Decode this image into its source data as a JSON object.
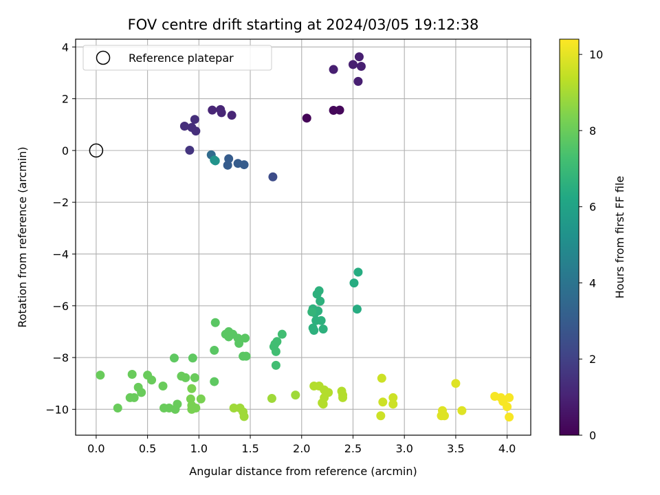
{
  "chart_data": {
    "type": "scatter",
    "title": "FOV centre drift starting at 2024/03/05 19:12:38",
    "xlabel": "Angular distance from reference (arcmin)",
    "ylabel": "Rotation from reference (arcmin)",
    "colorbar_label": "Hours from first FF file",
    "xlim": [
      -0.2,
      4.23
    ],
    "ylim": [
      -11.0,
      4.3
    ],
    "clim": [
      0,
      10.4
    ],
    "colormap": "viridis",
    "x_ticks": [
      0.0,
      0.5,
      1.0,
      1.5,
      2.0,
      2.5,
      3.0,
      3.5,
      4.0
    ],
    "x_tick_labels": [
      "0.0",
      "0.5",
      "1.0",
      "1.5",
      "2.0",
      "2.5",
      "3.0",
      "3.5",
      "4.0"
    ],
    "y_ticks": [
      4,
      2,
      0,
      -2,
      -4,
      -6,
      -8,
      -10
    ],
    "y_tick_labels": [
      "4",
      "2",
      "0",
      "−2",
      "−4",
      "−6",
      "−8",
      "−10"
    ],
    "colorbar_ticks": [
      0,
      2,
      4,
      6,
      8,
      10
    ],
    "colorbar_tick_labels": [
      "0",
      "2",
      "4",
      "6",
      "8",
      "10"
    ],
    "grid": true,
    "legend": {
      "position": "top-left",
      "entries": [
        "Reference platepar"
      ]
    },
    "reference": {
      "name": "Reference platepar",
      "x": 0.0,
      "y": 0.0,
      "marker": "open-circle"
    },
    "points": [
      {
        "x": 2.05,
        "y": 1.25,
        "t": 0.1
      },
      {
        "x": 2.31,
        "y": 1.55,
        "t": 0.2
      },
      {
        "x": 2.37,
        "y": 1.56,
        "t": 0.2
      },
      {
        "x": 2.31,
        "y": 3.13,
        "t": 0.9
      },
      {
        "x": 2.5,
        "y": 3.32,
        "t": 0.9
      },
      {
        "x": 2.56,
        "y": 3.62,
        "t": 0.9
      },
      {
        "x": 2.58,
        "y": 3.25,
        "t": 0.9
      },
      {
        "x": 2.55,
        "y": 2.67,
        "t": 0.9
      },
      {
        "x": 1.13,
        "y": 1.56,
        "t": 1.1
      },
      {
        "x": 1.21,
        "y": 1.58,
        "t": 1.1
      },
      {
        "x": 1.22,
        "y": 1.46,
        "t": 1.1
      },
      {
        "x": 1.32,
        "y": 1.36,
        "t": 1.1
      },
      {
        "x": 0.96,
        "y": 1.2,
        "t": 1.4
      },
      {
        "x": 0.86,
        "y": 0.94,
        "t": 1.4
      },
      {
        "x": 0.93,
        "y": 0.89,
        "t": 1.4
      },
      {
        "x": 0.97,
        "y": 0.75,
        "t": 1.4
      },
      {
        "x": 0.91,
        "y": 0.01,
        "t": 1.6
      },
      {
        "x": 1.72,
        "y": -1.02,
        "t": 2.4
      },
      {
        "x": 1.28,
        "y": -0.57,
        "t": 3.0
      },
      {
        "x": 1.38,
        "y": -0.5,
        "t": 3.0
      },
      {
        "x": 1.44,
        "y": -0.55,
        "t": 3.0
      },
      {
        "x": 1.29,
        "y": -0.32,
        "t": 3.0
      },
      {
        "x": 1.12,
        "y": -0.17,
        "t": 3.6
      },
      {
        "x": 1.15,
        "y": -0.37,
        "t": 5.3
      },
      {
        "x": 1.16,
        "y": -0.4,
        "t": 5.3
      },
      {
        "x": 2.55,
        "y": -4.7,
        "t": 6.4
      },
      {
        "x": 2.51,
        "y": -5.12,
        "t": 6.4
      },
      {
        "x": 2.54,
        "y": -6.13,
        "t": 6.4
      },
      {
        "x": 2.17,
        "y": -5.42,
        "t": 6.6
      },
      {
        "x": 2.15,
        "y": -5.55,
        "t": 6.6
      },
      {
        "x": 2.18,
        "y": -5.82,
        "t": 6.6
      },
      {
        "x": 2.11,
        "y": -6.12,
        "t": 6.6
      },
      {
        "x": 2.13,
        "y": -6.28,
        "t": 6.6
      },
      {
        "x": 2.16,
        "y": -6.2,
        "t": 6.6
      },
      {
        "x": 2.14,
        "y": -6.57,
        "t": 6.6
      },
      {
        "x": 2.19,
        "y": -6.57,
        "t": 6.6
      },
      {
        "x": 2.11,
        "y": -6.86,
        "t": 6.6
      },
      {
        "x": 2.12,
        "y": -6.95,
        "t": 6.6
      },
      {
        "x": 2.21,
        "y": -6.9,
        "t": 6.6
      },
      {
        "x": 2.1,
        "y": -6.24,
        "t": 6.8
      },
      {
        "x": 1.81,
        "y": -7.1,
        "t": 7.2
      },
      {
        "x": 1.76,
        "y": -7.38,
        "t": 7.2
      },
      {
        "x": 1.74,
        "y": -7.48,
        "t": 7.2
      },
      {
        "x": 1.73,
        "y": -7.58,
        "t": 7.2
      },
      {
        "x": 1.75,
        "y": -7.77,
        "t": 7.2
      },
      {
        "x": 1.75,
        "y": -8.3,
        "t": 7.2
      },
      {
        "x": 1.16,
        "y": -6.65,
        "t": 7.7
      },
      {
        "x": 1.26,
        "y": -7.1,
        "t": 7.7
      },
      {
        "x": 1.29,
        "y": -7.0,
        "t": 7.7
      },
      {
        "x": 1.29,
        "y": -7.2,
        "t": 7.7
      },
      {
        "x": 1.33,
        "y": -7.1,
        "t": 7.7
      },
      {
        "x": 1.38,
        "y": -7.25,
        "t": 7.7
      },
      {
        "x": 1.39,
        "y": -7.45,
        "t": 7.7
      },
      {
        "x": 1.45,
        "y": -7.25,
        "t": 7.7
      },
      {
        "x": 1.15,
        "y": -7.72,
        "t": 7.7
      },
      {
        "x": 1.43,
        "y": -7.95,
        "t": 7.7
      },
      {
        "x": 1.46,
        "y": -7.95,
        "t": 7.7
      },
      {
        "x": 1.15,
        "y": -8.93,
        "t": 7.8
      },
      {
        "x": 0.76,
        "y": -8.02,
        "t": 7.8
      },
      {
        "x": 0.94,
        "y": -8.02,
        "t": 7.8
      },
      {
        "x": 0.04,
        "y": -8.68,
        "t": 8.0
      },
      {
        "x": 0.35,
        "y": -8.65,
        "t": 8.0
      },
      {
        "x": 0.5,
        "y": -8.68,
        "t": 8.0
      },
      {
        "x": 0.54,
        "y": -8.87,
        "t": 8.0
      },
      {
        "x": 0.83,
        "y": -8.72,
        "t": 8.0
      },
      {
        "x": 0.87,
        "y": -8.78,
        "t": 8.0
      },
      {
        "x": 0.96,
        "y": -8.78,
        "t": 8.0
      },
      {
        "x": 0.41,
        "y": -9.15,
        "t": 8.0
      },
      {
        "x": 0.44,
        "y": -9.35,
        "t": 8.0
      },
      {
        "x": 0.33,
        "y": -9.55,
        "t": 8.0
      },
      {
        "x": 0.37,
        "y": -9.55,
        "t": 8.0
      },
      {
        "x": 0.65,
        "y": -9.1,
        "t": 8.0
      },
      {
        "x": 0.21,
        "y": -9.95,
        "t": 8.0
      },
      {
        "x": 0.66,
        "y": -9.95,
        "t": 8.0
      },
      {
        "x": 0.71,
        "y": -9.95,
        "t": 8.0
      },
      {
        "x": 0.77,
        "y": -10.0,
        "t": 8.0
      },
      {
        "x": 0.79,
        "y": -9.8,
        "t": 8.0
      },
      {
        "x": 0.93,
        "y": -9.2,
        "t": 8.3
      },
      {
        "x": 0.92,
        "y": -9.6,
        "t": 8.3
      },
      {
        "x": 1.02,
        "y": -9.6,
        "t": 8.3
      },
      {
        "x": 0.93,
        "y": -9.85,
        "t": 8.3
      },
      {
        "x": 0.97,
        "y": -9.95,
        "t": 8.3
      },
      {
        "x": 0.93,
        "y": -10.0,
        "t": 8.3
      },
      {
        "x": 1.34,
        "y": -9.95,
        "t": 8.9
      },
      {
        "x": 1.4,
        "y": -9.95,
        "t": 8.9
      },
      {
        "x": 1.43,
        "y": -10.1,
        "t": 8.9
      },
      {
        "x": 1.44,
        "y": -10.28,
        "t": 8.9
      },
      {
        "x": 1.71,
        "y": -9.58,
        "t": 8.9
      },
      {
        "x": 1.94,
        "y": -9.45,
        "t": 8.9
      },
      {
        "x": 2.12,
        "y": -9.1,
        "t": 9.2
      },
      {
        "x": 2.17,
        "y": -9.1,
        "t": 9.2
      },
      {
        "x": 2.22,
        "y": -9.25,
        "t": 9.2
      },
      {
        "x": 2.26,
        "y": -9.35,
        "t": 9.2
      },
      {
        "x": 2.22,
        "y": -9.55,
        "t": 9.2
      },
      {
        "x": 2.21,
        "y": -9.8,
        "t": 9.2
      },
      {
        "x": 2.2,
        "y": -9.75,
        "t": 9.2
      },
      {
        "x": 2.39,
        "y": -9.3,
        "t": 9.2
      },
      {
        "x": 2.4,
        "y": -9.45,
        "t": 9.2
      },
      {
        "x": 2.4,
        "y": -9.55,
        "t": 9.2
      },
      {
        "x": 2.78,
        "y": -8.8,
        "t": 9.6
      },
      {
        "x": 2.79,
        "y": -9.72,
        "t": 9.6
      },
      {
        "x": 2.89,
        "y": -9.55,
        "t": 9.6
      },
      {
        "x": 2.89,
        "y": -9.8,
        "t": 9.6
      },
      {
        "x": 2.77,
        "y": -10.25,
        "t": 9.6
      },
      {
        "x": 3.37,
        "y": -10.05,
        "t": 9.9
      },
      {
        "x": 3.36,
        "y": -10.25,
        "t": 9.9
      },
      {
        "x": 3.39,
        "y": -10.25,
        "t": 9.9
      },
      {
        "x": 3.5,
        "y": -9.0,
        "t": 9.9
      },
      {
        "x": 3.56,
        "y": -10.05,
        "t": 9.9
      },
      {
        "x": 3.88,
        "y": -9.5,
        "t": 10.3
      },
      {
        "x": 3.94,
        "y": -9.55,
        "t": 10.3
      },
      {
        "x": 3.96,
        "y": -9.7,
        "t": 10.3
      },
      {
        "x": 4.0,
        "y": -9.9,
        "t": 10.3
      },
      {
        "x": 4.02,
        "y": -9.55,
        "t": 10.3
      },
      {
        "x": 4.02,
        "y": -10.3,
        "t": 10.3
      }
    ]
  }
}
